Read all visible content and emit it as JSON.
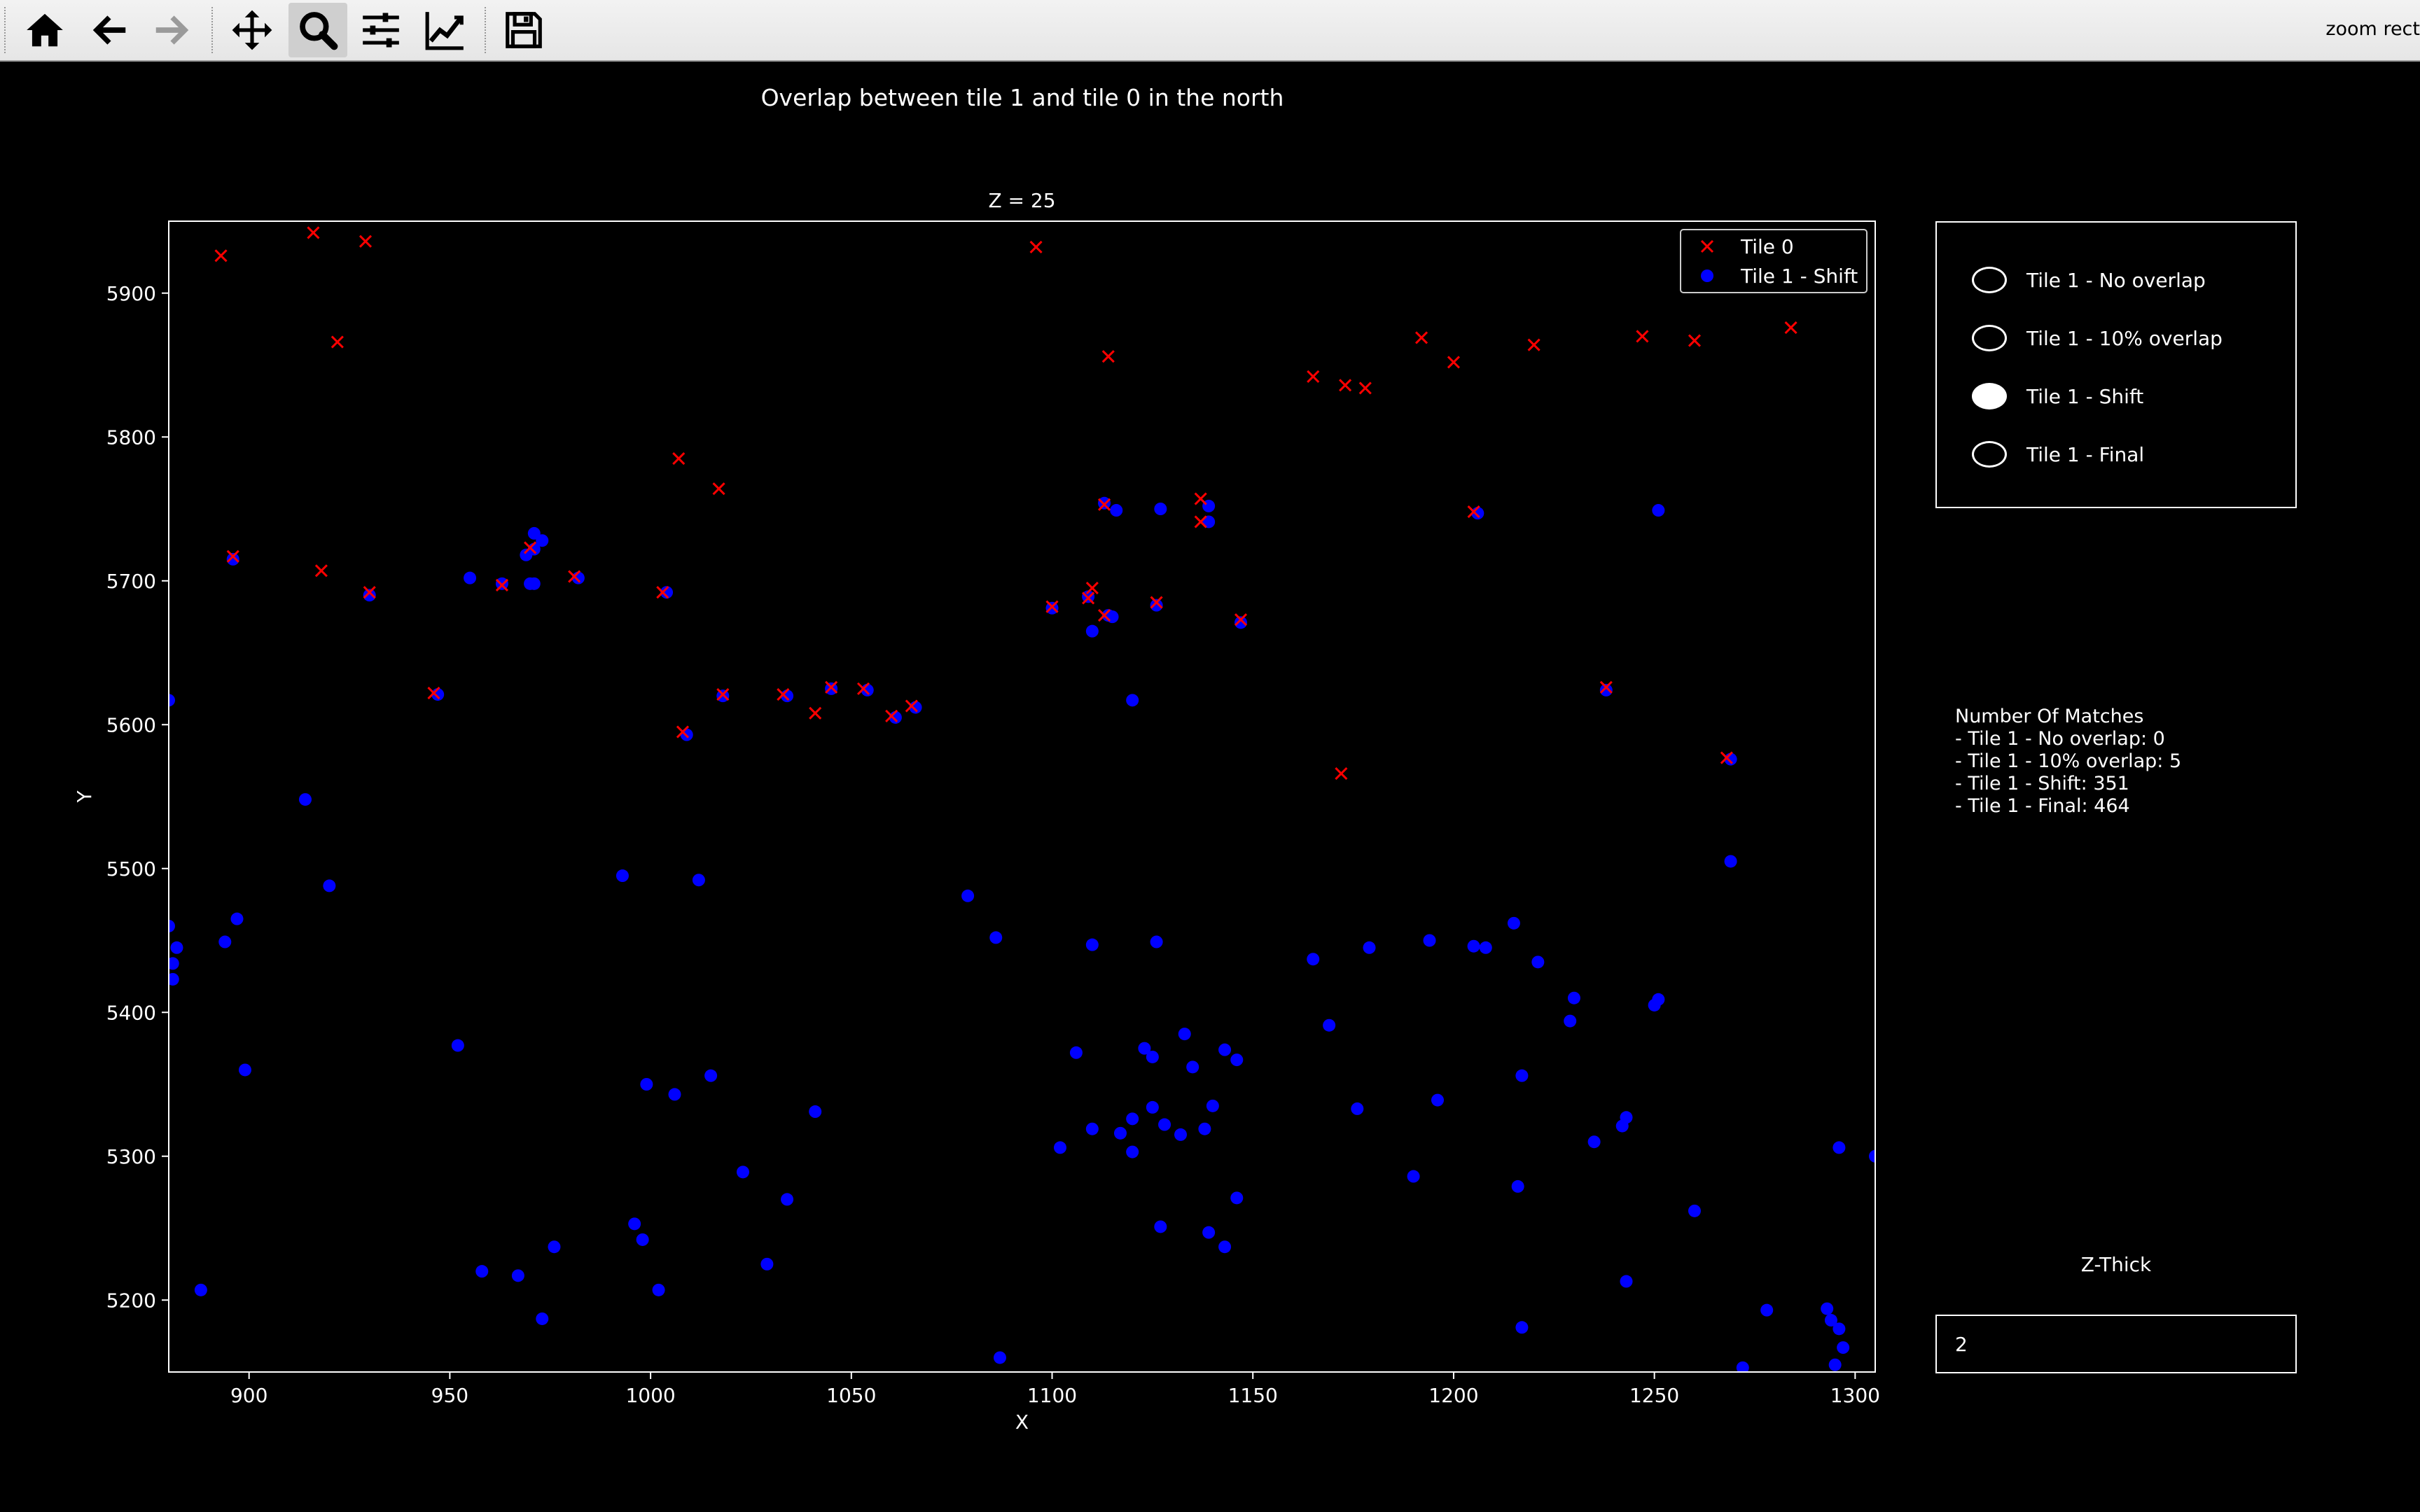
{
  "toolbar": {
    "buttons": [
      {
        "name": "home-icon"
      },
      {
        "name": "back-icon"
      },
      {
        "name": "forward-icon"
      },
      {
        "name": "pan-icon"
      },
      {
        "name": "zoom-icon",
        "active": true
      },
      {
        "name": "configure-subplots-icon"
      },
      {
        "name": "edit-axis-icon"
      },
      {
        "name": "save-icon"
      }
    ],
    "message": "zoom rect"
  },
  "figure": {
    "suptitle": "Overlap between tile 1 and tile 0 in the north"
  },
  "radio": {
    "options": [
      {
        "label": "Tile 1 - No overlap",
        "selected": false
      },
      {
        "label": "Tile 1 - 10% overlap",
        "selected": false
      },
      {
        "label": "Tile 1 - Shift",
        "selected": true
      },
      {
        "label": "Tile 1 - Final",
        "selected": false
      }
    ]
  },
  "matches": {
    "title": "Number Of Matches",
    "lines": [
      "- Tile 1 - No overlap: 0",
      "- Tile 1 - 10% overlap: 5",
      "- Tile 1 - Shift: 351",
      "- Tile 1 - Final: 464"
    ]
  },
  "zthick": {
    "label": "Z-Thick",
    "value": "2"
  },
  "colors": {
    "tile0": "#ff0000",
    "tile1": "#0000ff",
    "background": "#000000",
    "foreground": "#ffffff"
  },
  "chart_data": {
    "type": "scatter",
    "title": "Z = 25",
    "xlabel": "X",
    "ylabel": "Y",
    "xlim": [
      880,
      1305
    ],
    "ylim": [
      5150,
      5950
    ],
    "xticks": [
      900,
      950,
      1000,
      1050,
      1100,
      1150,
      1200,
      1250,
      1300
    ],
    "yticks": [
      5200,
      5300,
      5400,
      5500,
      5600,
      5700,
      5800,
      5900
    ],
    "legend_position": "top-right",
    "series": [
      {
        "name": "Tile 0",
        "marker": "x",
        "color": "#ff0000",
        "points": [
          [
            893,
            5926
          ],
          [
            916,
            5942
          ],
          [
            929,
            5936
          ],
          [
            922,
            5866
          ],
          [
            918,
            5707
          ],
          [
            896,
            5717
          ],
          [
            930,
            5692
          ],
          [
            946,
            5622
          ],
          [
            963,
            5697
          ],
          [
            970,
            5723
          ],
          [
            981,
            5703
          ],
          [
            1003,
            5692
          ],
          [
            1007,
            5785
          ],
          [
            1017,
            5764
          ],
          [
            1008,
            5595
          ],
          [
            1018,
            5621
          ],
          [
            1033,
            5621
          ],
          [
            1045,
            5626
          ],
          [
            1041,
            5608
          ],
          [
            1053,
            5625
          ],
          [
            1060,
            5606
          ],
          [
            1065,
            5613
          ],
          [
            1096,
            5932
          ],
          [
            1100,
            5682
          ],
          [
            1109,
            5688
          ],
          [
            1110,
            5695
          ],
          [
            1113,
            5676
          ],
          [
            1113,
            5753
          ],
          [
            1114,
            5856
          ],
          [
            1126,
            5685
          ],
          [
            1137,
            5757
          ],
          [
            1137,
            5741
          ],
          [
            1147,
            5673
          ],
          [
            1165,
            5842
          ],
          [
            1173,
            5836
          ],
          [
            1178,
            5834
          ],
          [
            1172,
            5566
          ],
          [
            1192,
            5869
          ],
          [
            1200,
            5852
          ],
          [
            1205,
            5748
          ],
          [
            1220,
            5864
          ],
          [
            1238,
            5626
          ],
          [
            1247,
            5870
          ],
          [
            1260,
            5867
          ],
          [
            1268,
            5577
          ],
          [
            1284,
            5876
          ]
        ]
      },
      {
        "name": "Tile 1 - Shift",
        "marker": "o",
        "color": "#0000ff",
        "points": [
          [
            880,
            5617
          ],
          [
            880,
            5460
          ],
          [
            881,
            5434
          ],
          [
            881,
            5423
          ],
          [
            882,
            5445
          ],
          [
            888,
            5207
          ],
          [
            894,
            5449
          ],
          [
            896,
            5715
          ],
          [
            897,
            5465
          ],
          [
            899,
            5360
          ],
          [
            914,
            5548
          ],
          [
            920,
            5488
          ],
          [
            930,
            5690
          ],
          [
            947,
            5621
          ],
          [
            952,
            5377
          ],
          [
            955,
            5702
          ],
          [
            958,
            5220
          ],
          [
            963,
            5698
          ],
          [
            967,
            5217
          ],
          [
            969,
            5718
          ],
          [
            970,
            5698
          ],
          [
            971,
            5722
          ],
          [
            971,
            5733
          ],
          [
            971,
            5698
          ],
          [
            973,
            5728
          ],
          [
            973,
            5187
          ],
          [
            976,
            5237
          ],
          [
            982,
            5702
          ],
          [
            993,
            5495
          ],
          [
            996,
            5253
          ],
          [
            998,
            5242
          ],
          [
            999,
            5350
          ],
          [
            1002,
            5207
          ],
          [
            1004,
            5692
          ],
          [
            1006,
            5343
          ],
          [
            1009,
            5593
          ],
          [
            1012,
            5492
          ],
          [
            1015,
            5356
          ],
          [
            1018,
            5620
          ],
          [
            1023,
            5289
          ],
          [
            1029,
            5225
          ],
          [
            1034,
            5620
          ],
          [
            1034,
            5270
          ],
          [
            1041,
            5331
          ],
          [
            1045,
            5625
          ],
          [
            1054,
            5624
          ],
          [
            1061,
            5605
          ],
          [
            1066,
            5612
          ],
          [
            1079,
            5481
          ],
          [
            1086,
            5452
          ],
          [
            1087,
            5160
          ],
          [
            1100,
            5681
          ],
          [
            1102,
            5306
          ],
          [
            1106,
            5372
          ],
          [
            1109,
            5689
          ],
          [
            1110,
            5665
          ],
          [
            1110,
            5447
          ],
          [
            1110,
            5319
          ],
          [
            1113,
            5754
          ],
          [
            1114,
            5676
          ],
          [
            1115,
            5675
          ],
          [
            1116,
            5749
          ],
          [
            1117,
            5316
          ],
          [
            1120,
            5617
          ],
          [
            1120,
            5326
          ],
          [
            1120,
            5303
          ],
          [
            1123,
            5375
          ],
          [
            1125,
            5369
          ],
          [
            1125,
            5334
          ],
          [
            1126,
            5683
          ],
          [
            1126,
            5449
          ],
          [
            1127,
            5750
          ],
          [
            1127,
            5251
          ],
          [
            1128,
            5322
          ],
          [
            1132,
            5315
          ],
          [
            1133,
            5385
          ],
          [
            1135,
            5362
          ],
          [
            1138,
            5319
          ],
          [
            1139,
            5752
          ],
          [
            1139,
            5741
          ],
          [
            1139,
            5247
          ],
          [
            1140,
            5335
          ],
          [
            1143,
            5374
          ],
          [
            1143,
            5237
          ],
          [
            1146,
            5367
          ],
          [
            1146,
            5271
          ],
          [
            1147,
            5671
          ],
          [
            1165,
            5437
          ],
          [
            1169,
            5391
          ],
          [
            1176,
            5333
          ],
          [
            1179,
            5445
          ],
          [
            1190,
            5286
          ],
          [
            1194,
            5450
          ],
          [
            1196,
            5339
          ],
          [
            1205,
            5446
          ],
          [
            1206,
            5747
          ],
          [
            1208,
            5445
          ],
          [
            1215,
            5462
          ],
          [
            1216,
            5279
          ],
          [
            1217,
            5356
          ],
          [
            1217,
            5181
          ],
          [
            1221,
            5435
          ],
          [
            1229,
            5394
          ],
          [
            1230,
            5410
          ],
          [
            1235,
            5310
          ],
          [
            1238,
            5624
          ],
          [
            1242,
            5321
          ],
          [
            1243,
            5327
          ],
          [
            1243,
            5213
          ],
          [
            1250,
            5405
          ],
          [
            1251,
            5749
          ],
          [
            1251,
            5409
          ],
          [
            1260,
            5262
          ],
          [
            1269,
            5576
          ],
          [
            1269,
            5505
          ],
          [
            1272,
            5153
          ],
          [
            1278,
            5193
          ],
          [
            1293,
            5194
          ],
          [
            1294,
            5186
          ],
          [
            1295,
            5155
          ],
          [
            1296,
            5180
          ],
          [
            1296,
            5306
          ],
          [
            1297,
            5167
          ],
          [
            1305,
            5300
          ]
        ]
      }
    ]
  }
}
